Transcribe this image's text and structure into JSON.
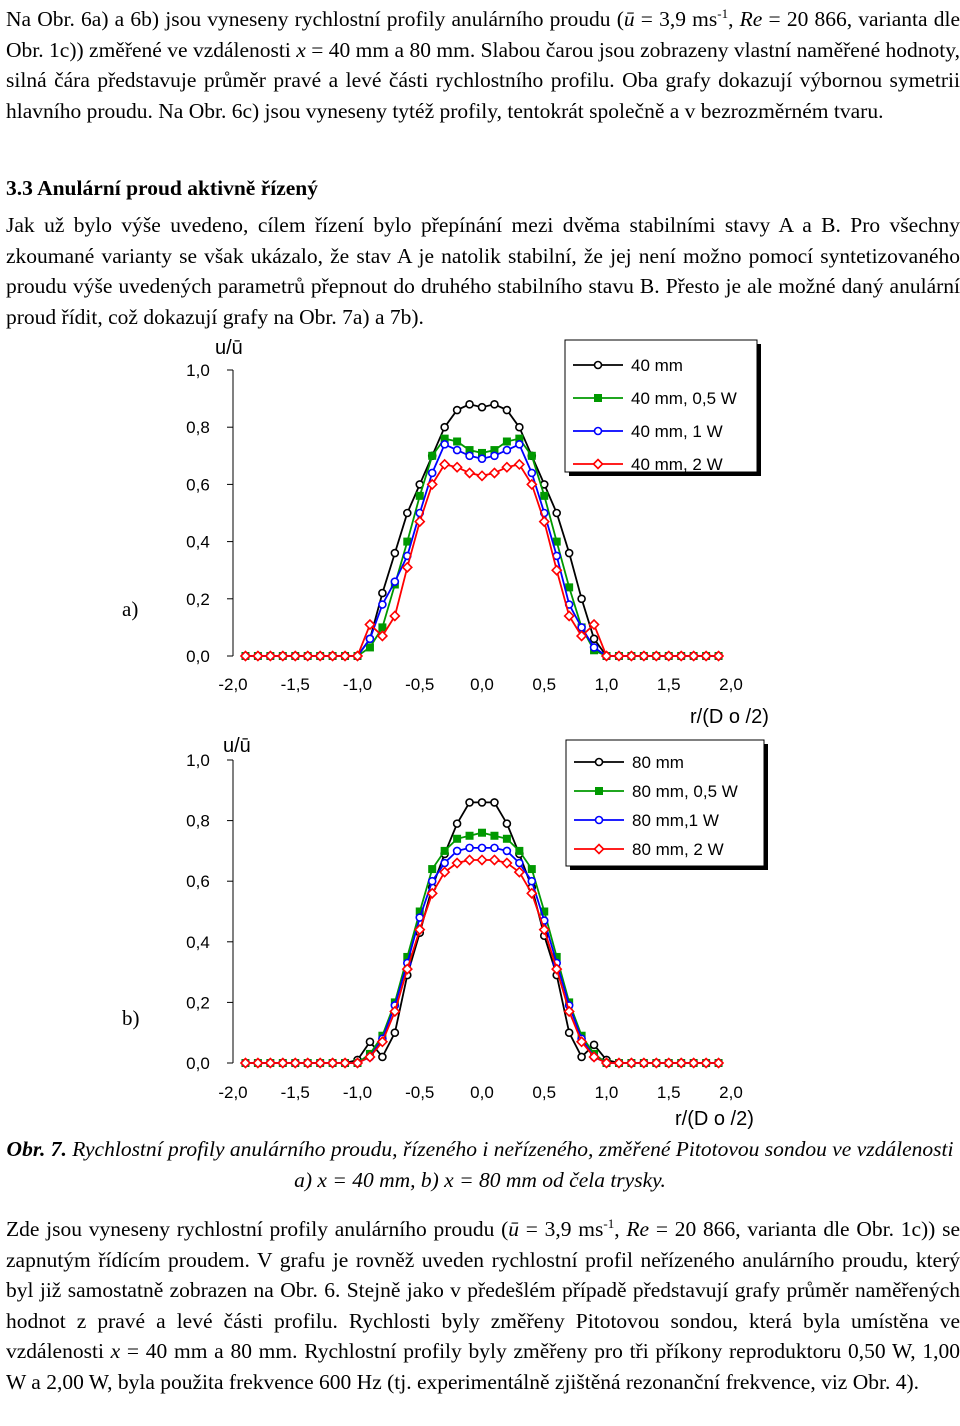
{
  "top_paragraph": {
    "l1a": "Na Obr. 6a) a 6b) jsou vyneseny rychlostní profily anulárního proudu (",
    "ubar": "ū",
    "l1b": " = 3,9 ms",
    "sup": "-1",
    "l1c": ", ",
    "re": "Re",
    "l1d": " = 20 866, varianta dle Obr. 1c)) změřené ve vzdálenosti ",
    "x": "x",
    "l1e": " = 40 mm a 80 mm. Slabou čarou jsou zobrazeny vlastní naměřené hodnoty, silná čára  představuje průměr pravé a levé části rychlostního profilu. Oba grafy dokazují výbornou symetrii hlavního proudu. Na Obr. 6c) jsou vyneseny tytéž profily, tentokrát společně a v bezrozměrném tvaru."
  },
  "section_heading": "3.3 Anulární proud aktivně řízený",
  "section_paragraph": "Jak už bylo výše uvedeno, cílem řízení bylo přepínání mezi dvěma stabilními stavy A a B. Pro všechny zkoumané varianty se však ukázalo, že stav A je natolik stabilní, že jej není možno pomocí syntetizovaného proudu výše uvedených parametrů přepnout do druhého stabilního stavu B. Přesto je ale možné daný anulární proud řídit, což dokazují grafy na Obr. 7a) a 7b).",
  "caption": {
    "label": "Obr. 7.",
    "text": " Rychlostní profily anulárního proudu, řízeného i neřízeného, změřené Pitotovou sondou ve vzdálenosti a) x = 40 mm, b) x = 80 mm od čela trysky."
  },
  "bottom_paragraph": {
    "a": "Zde jsou vyneseny rychlostní profily anulárního proudu (",
    "ubar": "ū",
    "b": " = 3,9 ms",
    "sup": "-1",
    "c": ", ",
    "re": "Re",
    "d": " = 20 866, varianta dle Obr. 1c)) se zapnutým řídícím proudem. V grafu je rovněž uveden rychlostní profil neřízeného anulárního proudu, který byl již samostatně zobrazen na Obr. 6. Stejně jako v předešlém případě představují grafy průměr naměřených hodnot z pravé a levé části profilu. Rychlosti byly změřeny Pitotovou sondou, která byla umístěna ve vzdálenosti ",
    "x": "x",
    "e": " = 40 mm a 80 mm. Rychlostní profily byly změřeny pro tři příkony reproduktoru 0,50 W, 1,00 W a 2,00 W, byla použita frekvence 600 Hz (tj. experimentálně zjištěná rezonanční frekvence, viz Obr. 4)."
  },
  "colors": {
    "black": "#000000",
    "green": "#009900",
    "blue": "#0000ff",
    "red": "#ff0000"
  },
  "chart_data": [
    {
      "type": "line",
      "panel_label": "a)",
      "ylabel": "u/ū",
      "xlabel": "r/(D o /2)",
      "xlim": [
        -2.0,
        2.0
      ],
      "ylim": [
        0.0,
        1.0
      ],
      "x_ticks": [
        "-2,0",
        "-1,5",
        "-1,0",
        "-0,5",
        "0,0",
        "0,5",
        "1,0",
        "1,5",
        "2,0"
      ],
      "y_ticks": [
        "0,0",
        "0,2",
        "0,4",
        "0,6",
        "0,8",
        "1,0"
      ],
      "legend_position": "top-right",
      "series": [
        {
          "name": "40 mm",
          "color": "#000000",
          "marker": "circle",
          "x": [
            -1.9,
            -1.8,
            -1.7,
            -1.6,
            -1.5,
            -1.4,
            -1.3,
            -1.2,
            -1.1,
            -1.0,
            -0.9,
            -0.8,
            -0.7,
            -0.6,
            -0.5,
            -0.4,
            -0.3,
            -0.2,
            -0.1,
            0.0,
            0.1,
            0.2,
            0.3,
            0.4,
            0.5,
            0.6,
            0.7,
            0.8,
            0.9,
            1.0,
            1.1,
            1.2,
            1.3,
            1.4,
            1.5,
            1.6,
            1.7,
            1.8,
            1.9
          ],
          "y": [
            0,
            0,
            0,
            0,
            0,
            0,
            0,
            0,
            0,
            0,
            0.06,
            0.22,
            0.36,
            0.5,
            0.6,
            0.7,
            0.8,
            0.86,
            0.88,
            0.87,
            0.88,
            0.86,
            0.8,
            0.7,
            0.6,
            0.5,
            0.36,
            0.2,
            0.06,
            0,
            0,
            0,
            0,
            0,
            0,
            0,
            0,
            0,
            0
          ]
        },
        {
          "name": "40 mm, 0,5 W",
          "color": "#009900",
          "marker": "square",
          "x": [
            -1.9,
            -1.8,
            -1.7,
            -1.6,
            -1.5,
            -1.4,
            -1.3,
            -1.2,
            -1.1,
            -1.0,
            -0.9,
            -0.8,
            -0.7,
            -0.6,
            -0.5,
            -0.4,
            -0.3,
            -0.2,
            -0.1,
            0.0,
            0.1,
            0.2,
            0.3,
            0.4,
            0.5,
            0.6,
            0.7,
            0.8,
            0.9,
            1.0,
            1.1,
            1.2,
            1.3,
            1.4,
            1.5,
            1.6,
            1.7,
            1.8,
            1.9
          ],
          "y": [
            0,
            0,
            0,
            0,
            0,
            0,
            0,
            0,
            0,
            0,
            0.03,
            0.1,
            0.25,
            0.4,
            0.56,
            0.7,
            0.76,
            0.75,
            0.72,
            0.71,
            0.72,
            0.75,
            0.76,
            0.7,
            0.56,
            0.4,
            0.24,
            0.1,
            0.02,
            0,
            0,
            0,
            0,
            0,
            0,
            0,
            0,
            0,
            0
          ]
        },
        {
          "name": "40 mm, 1 W",
          "color": "#0000ff",
          "marker": "circle",
          "x": [
            -1.9,
            -1.8,
            -1.7,
            -1.6,
            -1.5,
            -1.4,
            -1.3,
            -1.2,
            -1.1,
            -1.0,
            -0.9,
            -0.8,
            -0.7,
            -0.6,
            -0.5,
            -0.4,
            -0.3,
            -0.2,
            -0.1,
            0.0,
            0.1,
            0.2,
            0.3,
            0.4,
            0.5,
            0.6,
            0.7,
            0.8,
            0.9,
            1.0,
            1.1,
            1.2,
            1.3,
            1.4,
            1.5,
            1.6,
            1.7,
            1.8,
            1.9
          ],
          "y": [
            0,
            0,
            0,
            0,
            0,
            0,
            0,
            0,
            0,
            0,
            0.06,
            0.18,
            0.26,
            0.35,
            0.5,
            0.64,
            0.74,
            0.72,
            0.7,
            0.69,
            0.7,
            0.72,
            0.74,
            0.64,
            0.5,
            0.35,
            0.18,
            0.1,
            0.03,
            0,
            0,
            0,
            0,
            0,
            0,
            0,
            0,
            0,
            0
          ]
        },
        {
          "name": "40 mm, 2 W",
          "color": "#ff0000",
          "marker": "diamond",
          "x": [
            -1.9,
            -1.8,
            -1.7,
            -1.6,
            -1.5,
            -1.4,
            -1.3,
            -1.2,
            -1.1,
            -1.0,
            -0.9,
            -0.8,
            -0.7,
            -0.6,
            -0.5,
            -0.4,
            -0.3,
            -0.2,
            -0.1,
            0.0,
            0.1,
            0.2,
            0.3,
            0.4,
            0.5,
            0.6,
            0.7,
            0.8,
            0.9,
            1.0,
            1.1,
            1.2,
            1.3,
            1.4,
            1.5,
            1.6,
            1.7,
            1.8,
            1.9
          ],
          "y": [
            0,
            0,
            0,
            0,
            0,
            0,
            0,
            0,
            0,
            0,
            0.11,
            0.07,
            0.14,
            0.31,
            0.47,
            0.6,
            0.67,
            0.66,
            0.64,
            0.63,
            0.64,
            0.66,
            0.67,
            0.6,
            0.47,
            0.3,
            0.14,
            0.07,
            0.11,
            0,
            0,
            0,
            0,
            0,
            0,
            0,
            0,
            0,
            0
          ]
        }
      ]
    },
    {
      "type": "line",
      "panel_label": "b)",
      "ylabel": "u/ū",
      "xlabel": "r/(D o /2)",
      "xlim": [
        -2.0,
        2.0
      ],
      "ylim": [
        0.0,
        1.0
      ],
      "x_ticks": [
        "-2,0",
        "-1,5",
        "-1,0",
        "-0,5",
        "0,0",
        "0,5",
        "1,0",
        "1,5",
        "2,0"
      ],
      "y_ticks": [
        "0,0",
        "0,2",
        "0,4",
        "0,6",
        "0,8",
        "1,0"
      ],
      "legend_position": "top-right",
      "series": [
        {
          "name": "80 mm",
          "color": "#000000",
          "marker": "circle",
          "x": [
            -1.9,
            -1.8,
            -1.7,
            -1.6,
            -1.5,
            -1.4,
            -1.3,
            -1.2,
            -1.1,
            -1.0,
            -0.9,
            -0.8,
            -0.7,
            -0.6,
            -0.5,
            -0.4,
            -0.3,
            -0.2,
            -0.1,
            0.0,
            0.1,
            0.2,
            0.3,
            0.4,
            0.5,
            0.6,
            0.7,
            0.8,
            0.9,
            1.0,
            1.1,
            1.2,
            1.3,
            1.4,
            1.5,
            1.6,
            1.7,
            1.8,
            1.9
          ],
          "y": [
            0,
            0,
            0,
            0,
            0,
            0,
            0,
            0,
            0,
            0.01,
            0.07,
            0.02,
            0.1,
            0.29,
            0.43,
            0.58,
            0.69,
            0.79,
            0.86,
            0.86,
            0.86,
            0.79,
            0.69,
            0.58,
            0.42,
            0.29,
            0.1,
            0.02,
            0.06,
            0.01,
            0,
            0,
            0,
            0,
            0,
            0,
            0,
            0,
            0
          ]
        },
        {
          "name": "80 mm, 0,5 W",
          "color": "#009900",
          "marker": "square",
          "x": [
            -1.9,
            -1.8,
            -1.7,
            -1.6,
            -1.5,
            -1.4,
            -1.3,
            -1.2,
            -1.1,
            -1.0,
            -0.9,
            -0.8,
            -0.7,
            -0.6,
            -0.5,
            -0.4,
            -0.3,
            -0.2,
            -0.1,
            0.0,
            0.1,
            0.2,
            0.3,
            0.4,
            0.5,
            0.6,
            0.7,
            0.8,
            0.9,
            1.0,
            1.1,
            1.2,
            1.3,
            1.4,
            1.5,
            1.6,
            1.7,
            1.8,
            1.9
          ],
          "y": [
            0,
            0,
            0,
            0,
            0,
            0,
            0,
            0,
            0,
            0,
            0.03,
            0.09,
            0.2,
            0.35,
            0.5,
            0.64,
            0.7,
            0.74,
            0.75,
            0.76,
            0.75,
            0.74,
            0.7,
            0.64,
            0.5,
            0.35,
            0.2,
            0.09,
            0.03,
            0,
            0,
            0,
            0,
            0,
            0,
            0,
            0,
            0,
            0
          ]
        },
        {
          "name": "80 mm,1 W",
          "color": "#0000ff",
          "marker": "circle",
          "x": [
            -1.9,
            -1.8,
            -1.7,
            -1.6,
            -1.5,
            -1.4,
            -1.3,
            -1.2,
            -1.1,
            -1.0,
            -0.9,
            -0.8,
            -0.7,
            -0.6,
            -0.5,
            -0.4,
            -0.3,
            -0.2,
            -0.1,
            0.0,
            0.1,
            0.2,
            0.3,
            0.4,
            0.5,
            0.6,
            0.7,
            0.8,
            0.9,
            1.0,
            1.1,
            1.2,
            1.3,
            1.4,
            1.5,
            1.6,
            1.7,
            1.8,
            1.9
          ],
          "y": [
            0,
            0,
            0,
            0,
            0,
            0,
            0,
            0,
            0,
            0,
            0.02,
            0.08,
            0.19,
            0.33,
            0.48,
            0.6,
            0.66,
            0.7,
            0.71,
            0.71,
            0.71,
            0.7,
            0.66,
            0.6,
            0.47,
            0.33,
            0.19,
            0.08,
            0.02,
            0,
            0,
            0,
            0,
            0,
            0,
            0,
            0,
            0,
            0
          ]
        },
        {
          "name": "80 mm, 2 W",
          "color": "#ff0000",
          "marker": "diamond",
          "x": [
            -1.9,
            -1.8,
            -1.7,
            -1.6,
            -1.5,
            -1.4,
            -1.3,
            -1.2,
            -1.1,
            -1.0,
            -0.9,
            -0.8,
            -0.7,
            -0.6,
            -0.5,
            -0.4,
            -0.3,
            -0.2,
            -0.1,
            0.0,
            0.1,
            0.2,
            0.3,
            0.4,
            0.5,
            0.6,
            0.7,
            0.8,
            0.9,
            1.0,
            1.1,
            1.2,
            1.3,
            1.4,
            1.5,
            1.6,
            1.7,
            1.8,
            1.9
          ],
          "y": [
            0,
            0,
            0,
            0,
            0,
            0,
            0,
            0,
            0,
            0,
            0.02,
            0.07,
            0.17,
            0.31,
            0.44,
            0.56,
            0.63,
            0.66,
            0.67,
            0.67,
            0.67,
            0.66,
            0.63,
            0.56,
            0.44,
            0.31,
            0.17,
            0.07,
            0.02,
            0,
            0,
            0,
            0,
            0,
            0,
            0,
            0,
            0,
            0
          ]
        }
      ]
    }
  ]
}
